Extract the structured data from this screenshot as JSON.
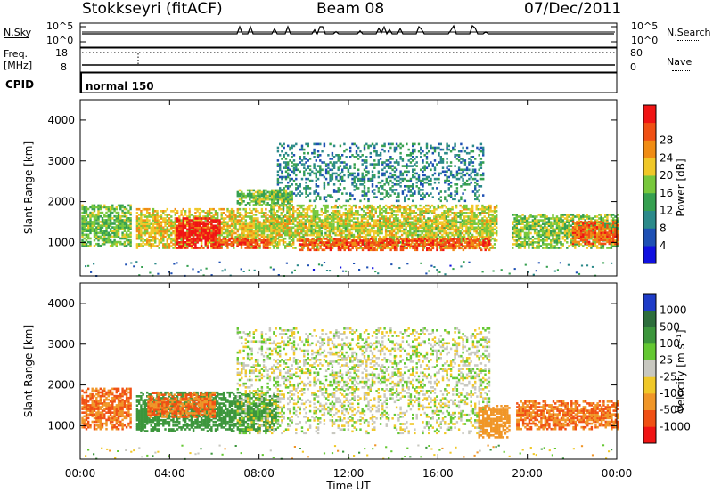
{
  "header": {
    "station": "Stokkseyri (fitACF)",
    "beam": "Beam 08",
    "date": "07/Dec/2011"
  },
  "strips": {
    "nsky_label": "N.Sky",
    "nsearch_label": "N.Search",
    "freq_label": "Freq.",
    "freq_unit": "[MHz]",
    "nave_label": "Nave",
    "cpid_label": "CPID",
    "cpid_value": "normal 150",
    "noise_ticks": [
      "10^5",
      "10^0"
    ],
    "freq_ticks": [
      "18",
      "8"
    ],
    "nave_ticks": [
      "80",
      "0"
    ]
  },
  "chart_data": [
    {
      "type": "heatmap",
      "title": "",
      "xlabel": "Time UT",
      "ylabel": "Slant Range [km]",
      "xlim": [
        0,
        24
      ],
      "ylim": [
        180,
        4500
      ],
      "x_ticks": [
        "00:00",
        "04:00",
        "08:00",
        "12:00",
        "16:00",
        "20:00",
        "00:00"
      ],
      "y_ticks": [
        "1000",
        "2000",
        "3000",
        "4000"
      ],
      "colorbar": {
        "label": "Power [dB]",
        "ticks": [
          "4",
          "8",
          "12",
          "16",
          "20",
          "24",
          "28"
        ],
        "range": [
          0,
          30
        ],
        "colors": [
          "#1010e0",
          "#1e50b4",
          "#2c8a8a",
          "#36a050",
          "#78c83c",
          "#f0c828",
          "#f08c14",
          "#f05014",
          "#f01414"
        ]
      },
      "echo_regions": [
        {
          "t_start": 0.05,
          "t_end": 2.3,
          "range_min": 900,
          "range_max": 1900,
          "value": 14
        },
        {
          "t_start": 2.5,
          "t_end": 8.8,
          "range_min": 850,
          "range_max": 1800,
          "value": 18
        },
        {
          "t_start": 4.3,
          "t_end": 6.2,
          "range_min": 850,
          "range_max": 1600,
          "value": 29
        },
        {
          "t_start": 6.0,
          "t_end": 8.5,
          "range_min": 850,
          "range_max": 1100,
          "value": 25
        },
        {
          "t_start": 7.0,
          "t_end": 9.5,
          "range_min": 1900,
          "range_max": 2300,
          "value": 14
        },
        {
          "t_start": 8.5,
          "t_end": 18.6,
          "range_min": 850,
          "range_max": 1900,
          "value": 17
        },
        {
          "t_start": 9.8,
          "t_end": 18.3,
          "range_min": 800,
          "range_max": 1100,
          "value": 25
        },
        {
          "t_start": 8.8,
          "t_end": 18.0,
          "range_min": 2000,
          "range_max": 3400,
          "value": 9
        },
        {
          "t_start": 19.3,
          "t_end": 24.0,
          "range_min": 850,
          "range_max": 1700,
          "value": 15
        },
        {
          "t_start": 22.0,
          "t_end": 24.0,
          "range_min": 950,
          "range_max": 1500,
          "value": 24
        }
      ]
    },
    {
      "type": "heatmap",
      "title": "",
      "xlabel": "Time UT",
      "ylabel": "Slant Range [km]",
      "xlim": [
        0,
        24
      ],
      "ylim": [
        180,
        4500
      ],
      "x_ticks": [
        "00:00",
        "04:00",
        "08:00",
        "12:00",
        "16:00",
        "20:00",
        "00:00"
      ],
      "y_ticks": [
        "1000",
        "2000",
        "3000",
        "4000"
      ],
      "colorbar": {
        "label": "Velocity [m s⁻¹]",
        "ticks": [
          "1000",
          "500",
          "100",
          "25",
          "-25",
          "-100",
          "-500",
          "-1000"
        ],
        "colors": [
          "#1e3cc8",
          "#2d6e3c",
          "#3c963c",
          "#64c832",
          "#c8c8c0",
          "#f0c828",
          "#f09628",
          "#f05014",
          "#f01414"
        ]
      },
      "echo_regions": [
        {
          "t_start": 0.05,
          "t_end": 2.3,
          "range_min": 900,
          "range_max": 1900,
          "value": -300
        },
        {
          "t_start": 2.5,
          "t_end": 8.8,
          "range_min": 850,
          "range_max": 1800,
          "value": 150
        },
        {
          "t_start": 3.0,
          "t_end": 6.0,
          "range_min": 1200,
          "range_max": 1800,
          "value": -300
        },
        {
          "t_start": 7.0,
          "t_end": 18.3,
          "range_min": 800,
          "range_max": 3400,
          "value": 0
        },
        {
          "t_start": 17.8,
          "t_end": 19.2,
          "range_min": 700,
          "range_max": 1500,
          "value": -150
        },
        {
          "t_start": 19.5,
          "t_end": 24.0,
          "range_min": 900,
          "range_max": 1600,
          "value": -300
        }
      ]
    }
  ]
}
